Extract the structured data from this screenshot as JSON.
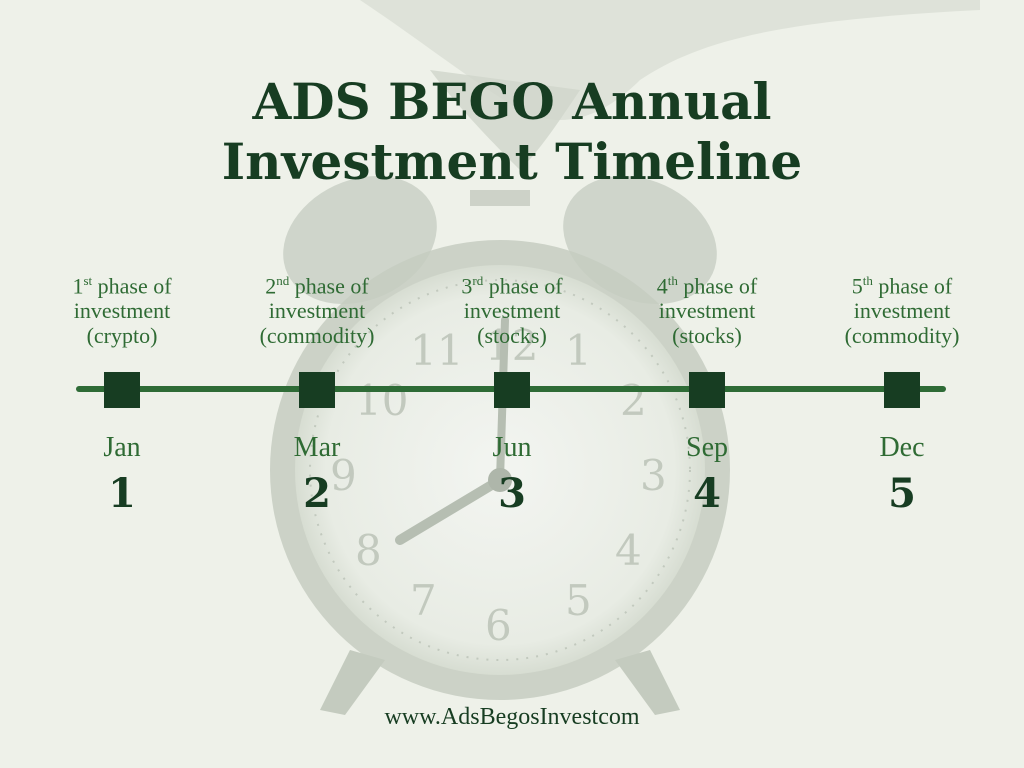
{
  "title": {
    "line1": "ADS BEGO Annual",
    "line2": "Investment Timeline"
  },
  "phases": [
    {
      "ordinal": "1",
      "suffix": "st",
      "text": " phase of",
      "line2": "investment",
      "line3": "(crypto)",
      "month": "Jan",
      "number": "1"
    },
    {
      "ordinal": "2",
      "suffix": "nd",
      "text": " phase of",
      "line2": "investment",
      "line3": "(commodity)",
      "month": "Mar",
      "number": "2"
    },
    {
      "ordinal": "3",
      "suffix": "rd",
      "text": " phase of",
      "line2": "investment",
      "line3": "(stocks)",
      "month": "Jun",
      "number": "3"
    },
    {
      "ordinal": "4",
      "suffix": "th",
      "text": " phase of",
      "line2": "investment",
      "line3": "(stocks)",
      "month": "Sep",
      "number": "4"
    },
    {
      "ordinal": "5",
      "suffix": "th",
      "text": " phase of",
      "line2": "investment",
      "line3": "(commodity)",
      "month": "Dec",
      "number": "5"
    }
  ],
  "website": "www.AdsBegosInvestcom",
  "colors": {
    "background": "#eef1e9",
    "dark_green": "#173d22",
    "mid_green": "#2f6b34",
    "line_green": "#2e6b36"
  },
  "icons": {
    "background_image": "alarm-clock-icon"
  }
}
